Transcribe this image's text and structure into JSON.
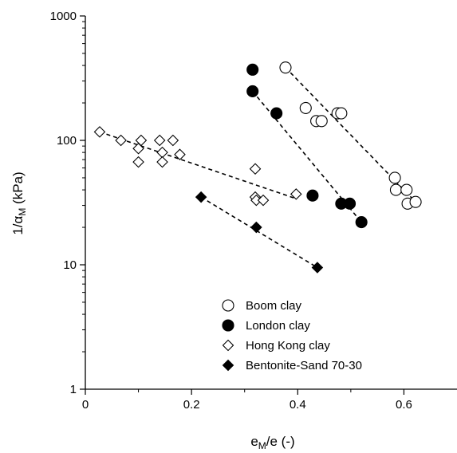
{
  "chart_data": {
    "type": "scatter",
    "xlabel": "e_M/e (-)",
    "ylabel": "1/α_M (kPa)",
    "xlim": [
      0,
      0.7
    ],
    "ylim": [
      1,
      1000
    ],
    "y_scale": "log",
    "x_ticks": [
      0,
      0.2,
      0.4,
      0.6
    ],
    "x_tick_labels": [
      "0",
      "0.2",
      "0.4",
      "0.6"
    ],
    "y_ticks": [
      1,
      10,
      100,
      1000
    ],
    "y_tick_labels": [
      "1",
      "10",
      "100",
      "1000"
    ],
    "grid": false,
    "legend_position": "bottom-right",
    "series": [
      {
        "name": "Boom clay",
        "marker": "circle-open",
        "points": [
          [
            0.377,
            385
          ],
          [
            0.415,
            182
          ],
          [
            0.435,
            143
          ],
          [
            0.445,
            143
          ],
          [
            0.475,
            165
          ],
          [
            0.482,
            165
          ],
          [
            0.583,
            50
          ],
          [
            0.585,
            40
          ],
          [
            0.605,
            40
          ],
          [
            0.607,
            31
          ],
          [
            0.622,
            32
          ]
        ],
        "trendline": [
          [
            0.377,
            385
          ],
          [
            0.622,
            32
          ]
        ]
      },
      {
        "name": "London clay",
        "marker": "circle-filled",
        "points": [
          [
            0.315,
            370
          ],
          [
            0.315,
            248
          ],
          [
            0.36,
            165
          ],
          [
            0.428,
            36
          ],
          [
            0.482,
            31
          ],
          [
            0.498,
            31
          ],
          [
            0.52,
            22
          ]
        ],
        "trendline": [
          [
            0.315,
            248
          ],
          [
            0.52,
            22
          ]
        ]
      },
      {
        "name": "Hong Kong clay",
        "marker": "diamond-open",
        "points": [
          [
            0.027,
            117
          ],
          [
            0.067,
            100
          ],
          [
            0.1,
            86
          ],
          [
            0.1,
            67
          ],
          [
            0.105,
            100
          ],
          [
            0.14,
            100
          ],
          [
            0.145,
            80
          ],
          [
            0.145,
            67
          ],
          [
            0.165,
            100
          ],
          [
            0.178,
            77
          ],
          [
            0.32,
            59
          ],
          [
            0.32,
            35
          ],
          [
            0.322,
            33
          ],
          [
            0.335,
            33
          ],
          [
            0.397,
            37
          ]
        ],
        "trendline": [
          [
            0.027,
            117
          ],
          [
            0.397,
            34
          ]
        ]
      },
      {
        "name": "Bentonite-Sand 70-30",
        "marker": "diamond-filled",
        "points": [
          [
            0.218,
            35
          ],
          [
            0.322,
            20
          ],
          [
            0.437,
            9.5
          ]
        ],
        "trendline": [
          [
            0.218,
            35
          ],
          [
            0.437,
            9.5
          ]
        ]
      }
    ]
  }
}
